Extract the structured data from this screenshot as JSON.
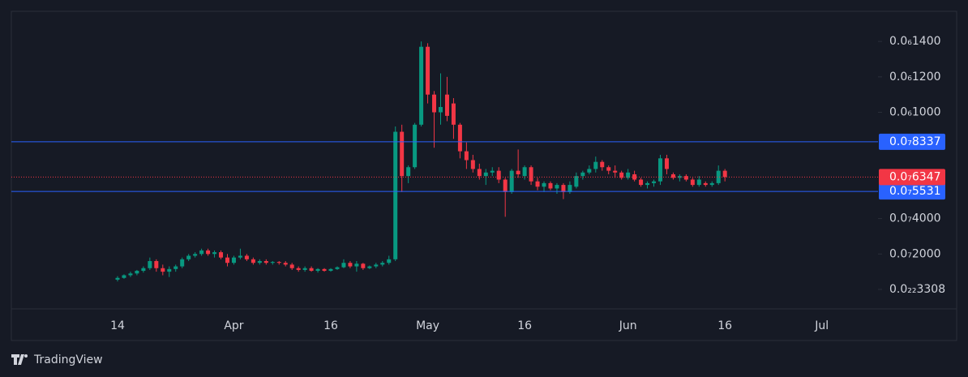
{
  "chart_data": {
    "type": "candlestick",
    "brand": "TradingView",
    "categories": [
      "14",
      null,
      null,
      null,
      null,
      null,
      null,
      null,
      null,
      null,
      null,
      null,
      null,
      null,
      null,
      null,
      null,
      null,
      "Apr",
      null,
      null,
      null,
      null,
      null,
      null,
      null,
      null,
      null,
      null,
      null,
      null,
      null,
      null,
      "16",
      null,
      null,
      null,
      null,
      null,
      null,
      null,
      null,
      null,
      null,
      null,
      null,
      null,
      null,
      "May",
      null,
      null,
      null,
      null,
      null,
      null,
      null,
      null,
      null,
      null,
      null,
      null,
      null,
      null,
      "16",
      null,
      null,
      null,
      null,
      null,
      null,
      null,
      null,
      null,
      null,
      null,
      null,
      null,
      null,
      null,
      "Jun",
      null,
      null,
      null,
      null,
      null,
      null,
      null,
      null,
      null,
      null,
      null,
      null,
      null,
      null,
      "16",
      null,
      null,
      null,
      null,
      null,
      null,
      null,
      null,
      null,
      null,
      null,
      null,
      null,
      null,
      "Jul"
    ],
    "open": [
      5.5e-09,
      6.5e-09,
      8e-09,
      9e-09,
      1.05e-08,
      1.2e-08,
      1.6e-08,
      1.2e-08,
      1e-08,
      1.15e-08,
      1.3e-08,
      1.7e-08,
      1.9e-08,
      2e-08,
      2.2e-08,
      2e-08,
      2.1e-08,
      1.8e-08,
      1.5e-08,
      1.8e-08,
      1.9e-08,
      1.7e-08,
      1.5e-08,
      1.6e-08,
      1.5e-08,
      1.55e-08,
      1.5e-08,
      1.4e-08,
      1.2e-08,
      1.1e-08,
      1.2e-08,
      1.05e-08,
      1.15e-08,
      1.05e-08,
      1.15e-08,
      1.25e-08,
      1.5e-08,
      1.3e-08,
      1.45e-08,
      1.2e-08,
      1.3e-08,
      1.4e-08,
      1.5e-08,
      1.7e-08,
      8.9e-08,
      6.4e-08,
      6.9e-08,
      9.3e-08,
      1.37e-07,
      1.1e-07,
      1e-07,
      1.1e-07,
      1.05e-07,
      9.3e-08,
      7.8e-08,
      7.3e-08,
      6.8e-08,
      6.4e-08,
      6.6e-08,
      6.7e-08,
      6.2e-08,
      5.5e-08,
      6.7e-08,
      6.4e-08,
      6.9e-08,
      6.1e-08,
      5.8e-08,
      6e-08,
      5.7e-08,
      5.9e-08,
      5.5e-08,
      5.8e-08,
      6.4e-08,
      6.6e-08,
      6.8e-08,
      7.2e-08,
      6.9e-08,
      6.7e-08,
      6.6e-08,
      6.3e-08,
      6.5e-08,
      6.2e-08,
      5.9e-08,
      6e-08,
      6.1e-08,
      7.4e-08,
      6.5e-08,
      6.3e-08,
      6.4e-08,
      6.2e-08,
      5.9e-08,
      6e-08,
      5.9e-08,
      6e-08,
      6.7e-08,
      null,
      null,
      null,
      null,
      null,
      null,
      null,
      null,
      null,
      null,
      null,
      null,
      null,
      null,
      null
    ],
    "high": [
      7.5e-09,
      8.5e-09,
      1e-08,
      1.1e-08,
      1.3e-08,
      1.8e-08,
      1.7e-08,
      1.4e-08,
      1.3e-08,
      1.4e-08,
      1.8e-08,
      2e-08,
      2.1e-08,
      2.3e-08,
      2.3e-08,
      2.2e-08,
      2.2e-08,
      2e-08,
      1.9e-08,
      2.3e-08,
      2e-08,
      1.8e-08,
      1.7e-08,
      1.7e-08,
      1.6e-08,
      1.6e-08,
      1.6e-08,
      1.5e-08,
      1.3e-08,
      1.3e-08,
      1.3e-08,
      1.2e-08,
      1.2e-08,
      1.2e-08,
      1.3e-08,
      1.7e-08,
      1.6e-08,
      1.6e-08,
      1.5e-08,
      1.35e-08,
      1.5e-08,
      1.6e-08,
      1.9e-08,
      9.2e-08,
      9.3e-08,
      7e-08,
      9.4e-08,
      1.4e-07,
      1.39e-07,
      1.12e-07,
      1.22e-07,
      1.2e-07,
      1.08e-07,
      9.4e-08,
      8.3e-08,
      7.6e-08,
      7.1e-08,
      6.8e-08,
      6.9e-08,
      6.9e-08,
      6.3e-08,
      6.8e-08,
      7.9e-08,
      7e-08,
      7e-08,
      6.3e-08,
      6.1e-08,
      6.1e-08,
      6e-08,
      6e-08,
      6.1e-08,
      6.6e-08,
      6.7e-08,
      7e-08,
      7.5e-08,
      7.3e-08,
      7e-08,
      7e-08,
      6.7e-08,
      6.8e-08,
      6.7e-08,
      6.3e-08,
      6.1e-08,
      6.2e-08,
      7.6e-08,
      7.6e-08,
      6.6e-08,
      6.5e-08,
      6.5e-08,
      6.3e-08,
      6.4e-08,
      6.1e-08,
      6.1e-08,
      7e-08,
      6.8e-08,
      null,
      null,
      null,
      null,
      null,
      null,
      null,
      null,
      null,
      null,
      null,
      null,
      null,
      null,
      null
    ],
    "low": [
      4.5e-09,
      6e-09,
      7e-09,
      8e-09,
      9.5e-09,
      1.1e-08,
      1e-08,
      8e-09,
      7e-09,
      1e-08,
      1.2e-08,
      1.6e-08,
      1.8e-08,
      1.9e-08,
      1.9e-08,
      1.8e-08,
      1.7e-08,
      1.3e-08,
      1.4e-08,
      1.7e-08,
      1.6e-08,
      1.4e-08,
      1.4e-08,
      1.4e-08,
      1.4e-08,
      1.4e-08,
      1.3e-08,
      1.1e-08,
      1e-08,
      1e-08,
      1e-08,
      9.5e-09,
      1e-08,
      1e-08,
      1.1e-08,
      1.2e-08,
      1.2e-08,
      1e-08,
      1.1e-08,
      1.15e-08,
      1.2e-08,
      1.3e-08,
      1.4e-08,
      1.6e-08,
      5.5e-08,
      6e-08,
      6.8e-08,
      9.2e-08,
      1.05e-07,
      8e-08,
      9.3e-08,
      9.5e-08,
      8.5e-08,
      7.4e-08,
      6.8e-08,
      6.6e-08,
      6.2e-08,
      5.9e-08,
      6.4e-08,
      6e-08,
      4.1e-08,
      5.4e-08,
      6.3e-08,
      6.2e-08,
      5.9e-08,
      5.6e-08,
      5.5e-08,
      5.6e-08,
      5.4e-08,
      5.1e-08,
      5.4e-08,
      5.7e-08,
      6.2e-08,
      6.5e-08,
      6.6e-08,
      6.7e-08,
      6.5e-08,
      6.3e-08,
      6.2e-08,
      6.2e-08,
      6.1e-08,
      5.8e-08,
      5.7e-08,
      5.8e-08,
      5.9e-08,
      6.5e-08,
      6.2e-08,
      6.1e-08,
      6.1e-08,
      5.8e-08,
      5.8e-08,
      5.8e-08,
      5.8e-08,
      5.9e-08,
      6.1e-08,
      null,
      null,
      null,
      null,
      null,
      null,
      null,
      null,
      null,
      null,
      null,
      null,
      null,
      null,
      null
    ],
    "close": [
      6.5e-09,
      8e-09,
      9e-09,
      1.05e-08,
      1.2e-08,
      1.6e-08,
      1.2e-08,
      1e-08,
      1.15e-08,
      1.3e-08,
      1.7e-08,
      1.9e-08,
      2e-08,
      2.2e-08,
      2e-08,
      2.1e-08,
      1.8e-08,
      1.5e-08,
      1.8e-08,
      1.9e-08,
      1.7e-08,
      1.5e-08,
      1.6e-08,
      1.5e-08,
      1.55e-08,
      1.5e-08,
      1.4e-08,
      1.2e-08,
      1.1e-08,
      1.2e-08,
      1.05e-08,
      1.15e-08,
      1.05e-08,
      1.15e-08,
      1.25e-08,
      1.5e-08,
      1.3e-08,
      1.45e-08,
      1.2e-08,
      1.3e-08,
      1.4e-08,
      1.5e-08,
      1.7e-08,
      8.9e-08,
      6.4e-08,
      6.9e-08,
      9.3e-08,
      1.37e-07,
      1.1e-07,
      1e-07,
      1.03e-07,
      9.8e-08,
      9.3e-08,
      7.8e-08,
      7.3e-08,
      6.8e-08,
      6.4e-08,
      6.6e-08,
      6.7e-08,
      6.2e-08,
      5.5e-08,
      6.7e-08,
      6.5e-08,
      6.9e-08,
      6.1e-08,
      5.8e-08,
      6e-08,
      5.7e-08,
      5.9e-08,
      5.5e-08,
      5.9e-08,
      6.4e-08,
      6.6e-08,
      6.8e-08,
      7.2e-08,
      6.9e-08,
      6.7e-08,
      6.6e-08,
      6.3e-08,
      6.6e-08,
      6.2e-08,
      5.9e-08,
      6e-08,
      6.1e-08,
      7.4e-08,
      6.8e-08,
      6.3e-08,
      6.4e-08,
      6.2e-08,
      5.9e-08,
      6.2e-08,
      5.9e-08,
      6e-08,
      6.7e-08,
      6.347e-08,
      null,
      null,
      null,
      null,
      null,
      null,
      null,
      null,
      null,
      null,
      null,
      null,
      null,
      null,
      null
    ],
    "up_color": "#089981",
    "down_color": "#f23645",
    "ylim": [
      -1.1e-08,
      1.57e-07
    ],
    "yticks": [
      {
        "value": 3.308e-23,
        "label": "0.0₂₂3308"
      },
      {
        "value": 2e-08,
        "label": "0.0₇2000"
      },
      {
        "value": 4e-08,
        "label": "0.0₇4000"
      },
      {
        "value": 1e-07,
        "label": "0.0₆1000"
      },
      {
        "value": 1.2e-07,
        "label": "0.0₆1200"
      },
      {
        "value": 1.4e-07,
        "label": "0.0₆1400"
      }
    ],
    "price_lines": [
      {
        "value": 8.337e-08,
        "label": "0.0₇8337",
        "color": "#2962ff"
      },
      {
        "value": 5.531e-08,
        "label": "0.0₇5531",
        "color": "#2962ff"
      }
    ],
    "last_price_label": "0.0₇6347"
  }
}
